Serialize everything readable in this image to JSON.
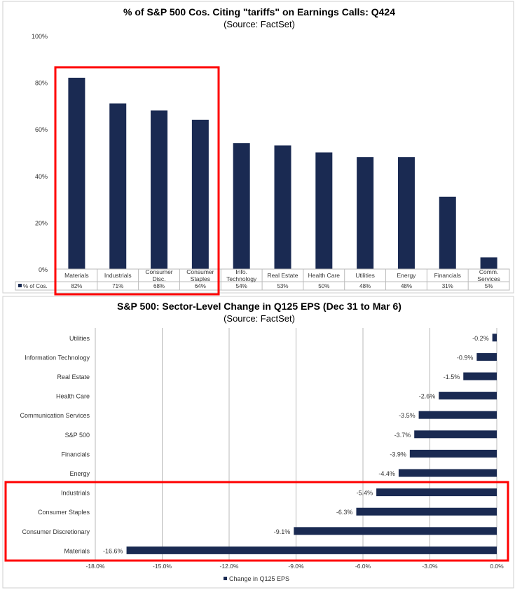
{
  "chart_data": [
    {
      "type": "bar",
      "title": "% of S&P 500 Cos. Citing \"tariffs\" on Earnings Calls: Q424",
      "subtitle": "(Source: FactSet)",
      "categories": [
        [
          "Materials"
        ],
        [
          "Industrials"
        ],
        [
          "Consumer",
          "Disc."
        ],
        [
          "Consumer",
          "Staples"
        ],
        [
          "Info.",
          "Technology"
        ],
        [
          "Real Estate"
        ],
        [
          "Health Care"
        ],
        [
          "Utilities"
        ],
        [
          "Energy"
        ],
        [
          "Financials"
        ],
        [
          "Comm.",
          "Services"
        ]
      ],
      "series": [
        {
          "name": "% of Cos.",
          "values": [
            82,
            71,
            68,
            64,
            54,
            53,
            50,
            48,
            48,
            31,
            5
          ]
        }
      ],
      "value_labels": [
        "82%",
        "71%",
        "68%",
        "64%",
        "54%",
        "53%",
        "50%",
        "48%",
        "48%",
        "31%",
        "5%"
      ],
      "ylim": [
        0,
        100
      ],
      "yticks": [
        "0%",
        "20%",
        "40%",
        "60%",
        "80%",
        "100%"
      ],
      "legend": "data-table",
      "highlighted_categories": [
        "Materials",
        "Industrials",
        "Consumer Disc.",
        "Consumer Staples"
      ]
    },
    {
      "type": "bar",
      "orientation": "horizontal",
      "title": "S&P 500: Sector-Level Change in Q125 EPS (Dec 31 to Mar 6)",
      "subtitle": "(Source: FactSet)",
      "categories": [
        "Utilities",
        "Information Technology",
        "Real Estate",
        "Health Care",
        "Communication Services",
        "S&P 500",
        "Financials",
        "Energy",
        "Industrials",
        "Consumer Staples",
        "Consumer Discretionary",
        "Materials"
      ],
      "series": [
        {
          "name": "Change in Q125 EPS",
          "values": [
            -0.2,
            -0.9,
            -1.5,
            -2.6,
            -3.5,
            -3.7,
            -3.9,
            -4.4,
            -5.4,
            -6.3,
            -9.1,
            -16.6
          ]
        }
      ],
      "value_labels": [
        "-0.2%",
        "-0.9%",
        "-1.5%",
        "-2.6%",
        "-3.5%",
        "-3.7%",
        "-3.9%",
        "-4.4%",
        "-5.4%",
        "-6.3%",
        "-9.1%",
        "-16.6%"
      ],
      "xlim": [
        -18,
        0
      ],
      "xticks": [
        "-18.0%",
        "-15.0%",
        "-12.0%",
        "-9.0%",
        "-6.0%",
        "-3.0%",
        "0.0%"
      ],
      "grid": true,
      "legend": "bottom",
      "highlighted_categories": [
        "Industrials",
        "Consumer Staples",
        "Consumer Discretionary",
        "Materials"
      ]
    }
  ],
  "colors": {
    "bar": "#1a2a52",
    "highlight": "#ff0000",
    "grid": "#b8b8b8"
  }
}
